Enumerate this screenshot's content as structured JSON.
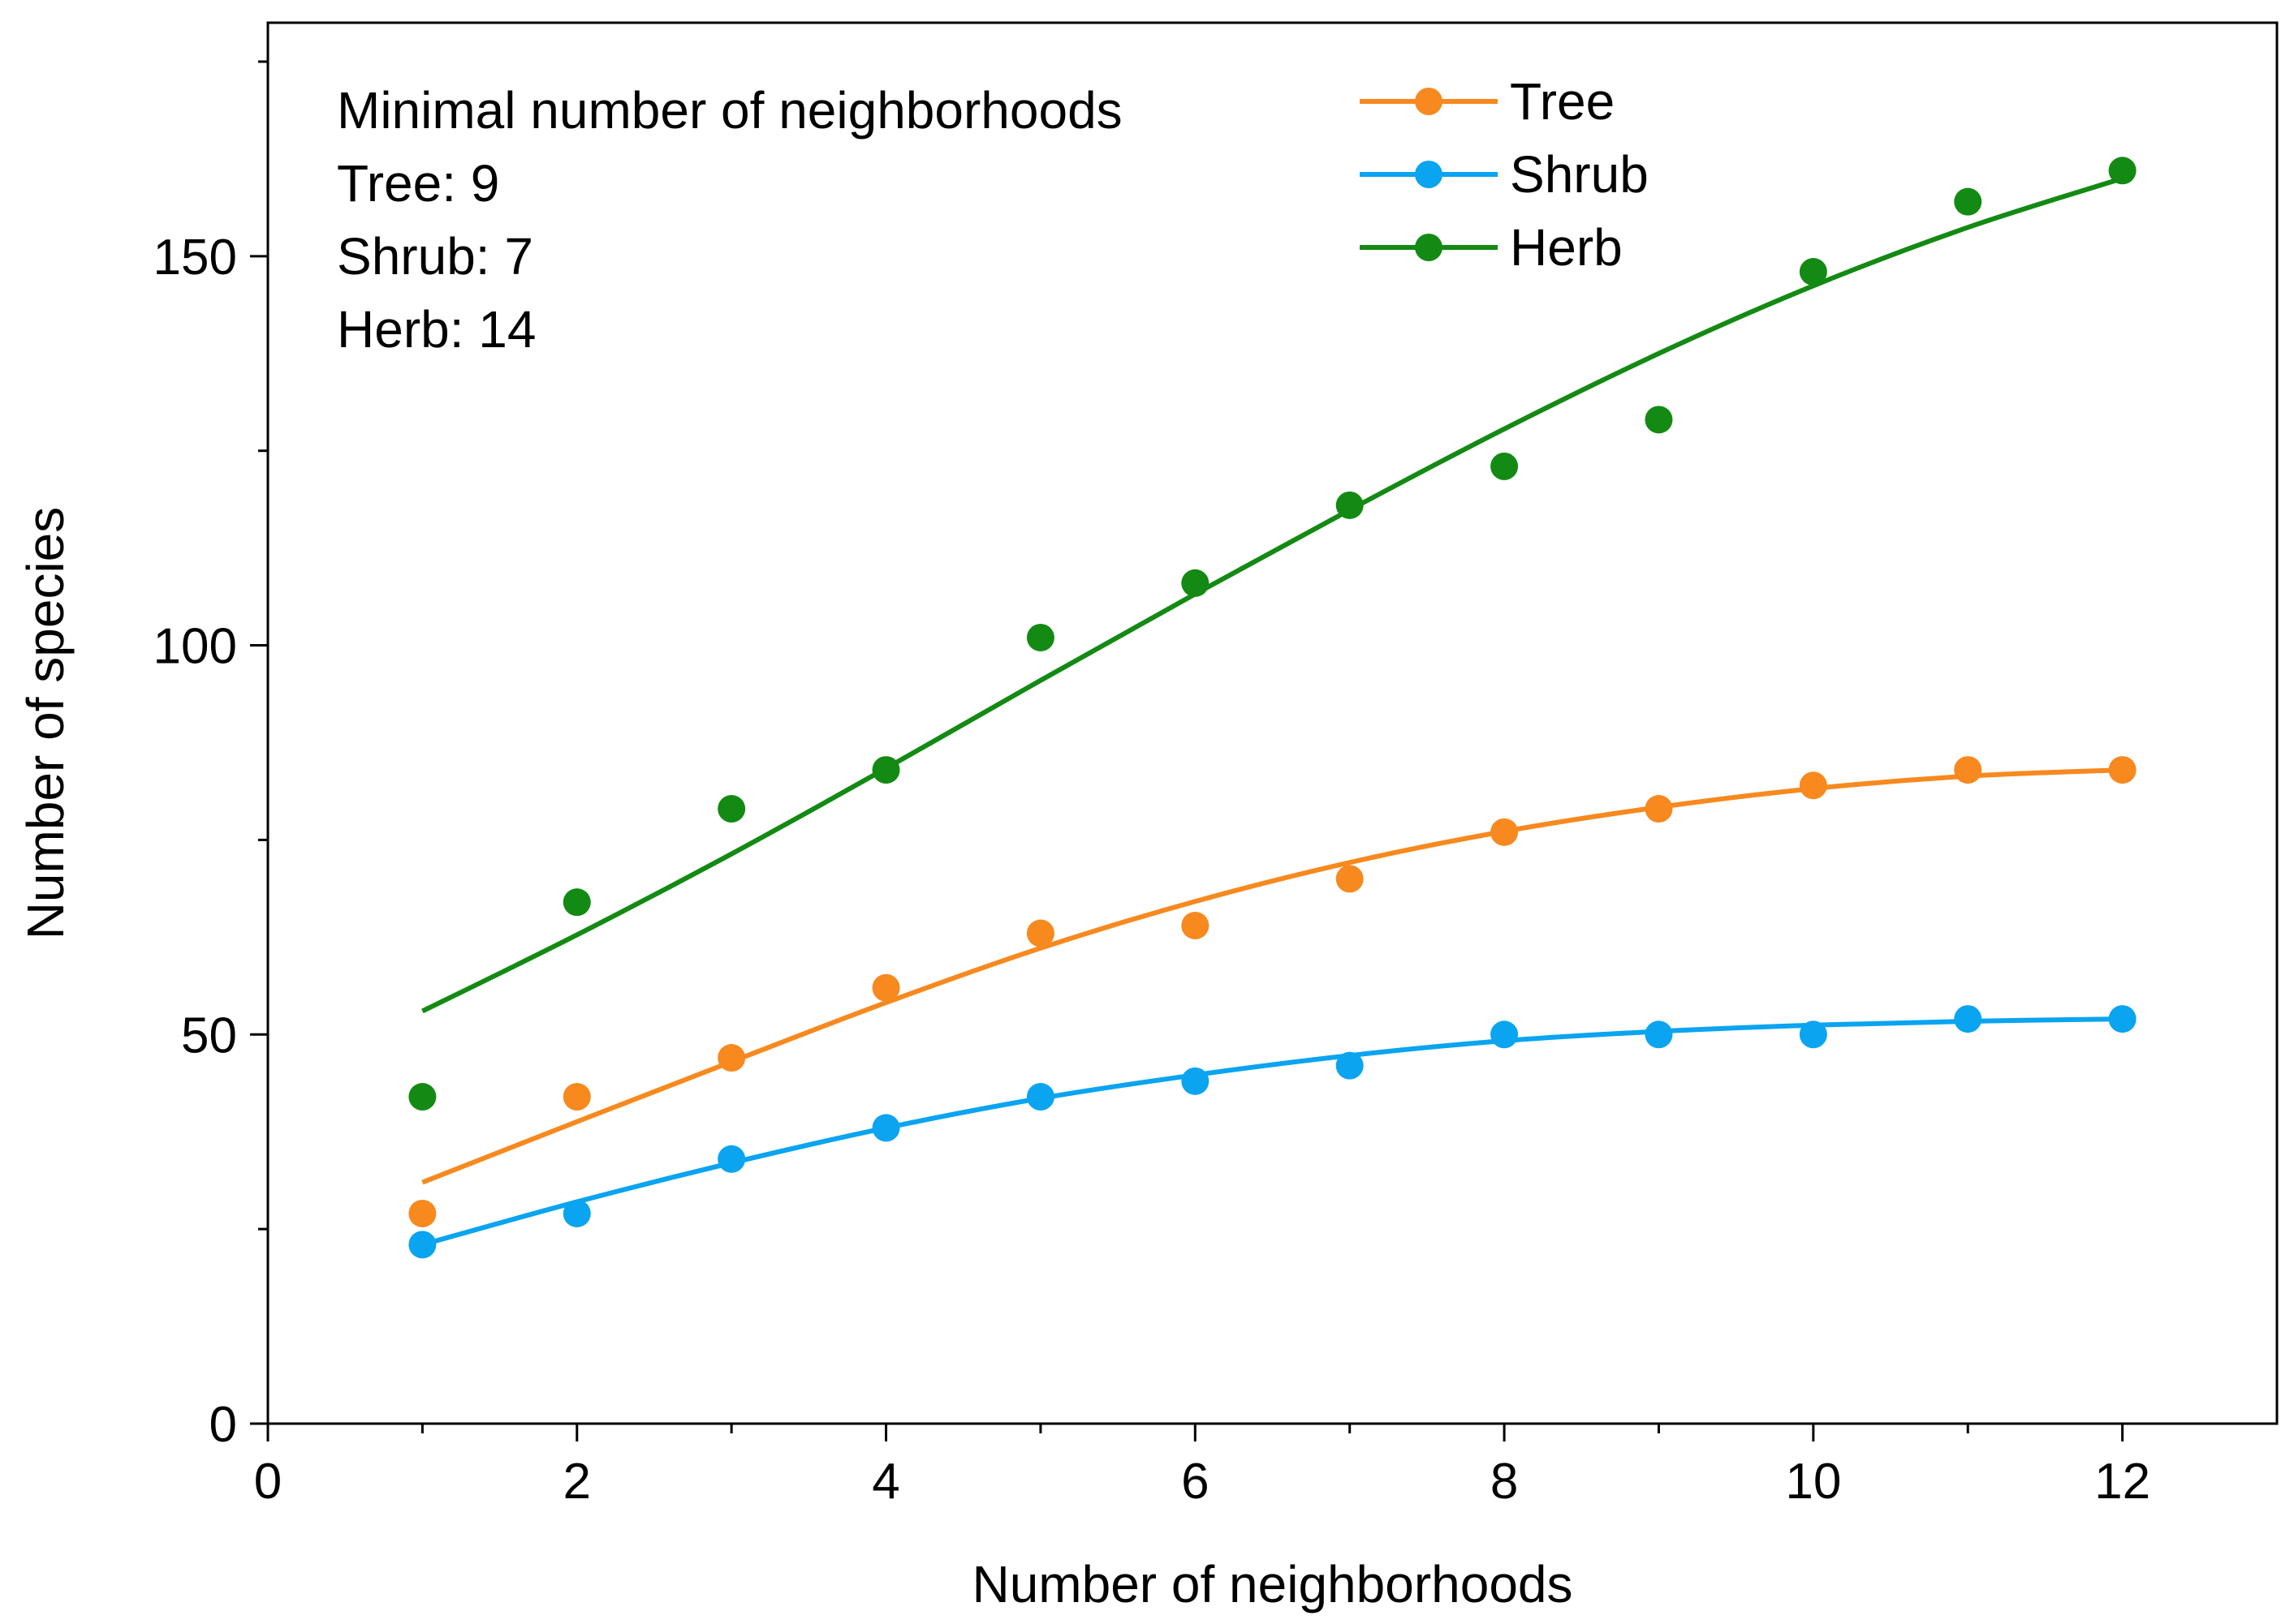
{
  "chart_data": {
    "type": "scatter",
    "title": "",
    "xlabel": "Number of neighborhoods",
    "ylabel": "Number of species",
    "xlim": [
      0,
      13
    ],
    "ylim": [
      0,
      180
    ],
    "xticks": [
      0,
      2,
      4,
      6,
      8,
      10,
      12
    ],
    "xtick_labels": [
      "0",
      "2",
      "4",
      "6",
      "8",
      "10",
      "12"
    ],
    "x_minor_ticks": [
      1,
      3,
      5,
      7,
      9,
      11
    ],
    "yticks": [
      0,
      50,
      100,
      150
    ],
    "ytick_labels": [
      "0",
      "50",
      "100",
      "150"
    ],
    "y_minor_ticks": [
      25,
      75,
      125,
      175
    ],
    "grid": false,
    "legend_position": "top-center",
    "annotation": {
      "title": "Minimal number of neighborhoods",
      "lines": [
        "Tree: 9",
        "Shrub: 7",
        "Herb: 14"
      ]
    },
    "x": [
      1,
      2,
      3,
      4,
      5,
      6,
      7,
      8,
      9,
      10,
      11,
      12
    ],
    "series": [
      {
        "name": "Tree",
        "color": "#f7891e",
        "points": [
          27,
          42,
          47,
          56,
          63,
          64,
          70,
          76,
          79,
          82,
          84,
          84
        ],
        "fit": [
          31,
          38.8,
          46.5,
          54.1,
          61.1,
          67.1,
          72.1,
          76.1,
          79.2,
          81.6,
          83.2,
          84
        ]
      },
      {
        "name": "Shrub",
        "color": "#0aa4f0",
        "points": [
          23,
          27,
          34,
          38,
          42,
          44,
          46,
          50,
          50,
          50,
          52,
          52
        ],
        "fit": [
          23,
          28.5,
          33.5,
          38,
          41.8,
          44.8,
          47.3,
          49.2,
          50.4,
          51.2,
          51.7,
          52
        ]
      },
      {
        "name": "Herb",
        "color": "#138a13",
        "points": [
          42,
          67,
          79,
          84,
          101,
          108,
          118,
          123,
          129,
          148,
          157,
          161
        ],
        "fit": [
          53,
          62.8,
          73.2,
          84.2,
          95.5,
          106.6,
          117.4,
          127.8,
          137.5,
          146.2,
          153.7,
          160
        ]
      }
    ]
  }
}
